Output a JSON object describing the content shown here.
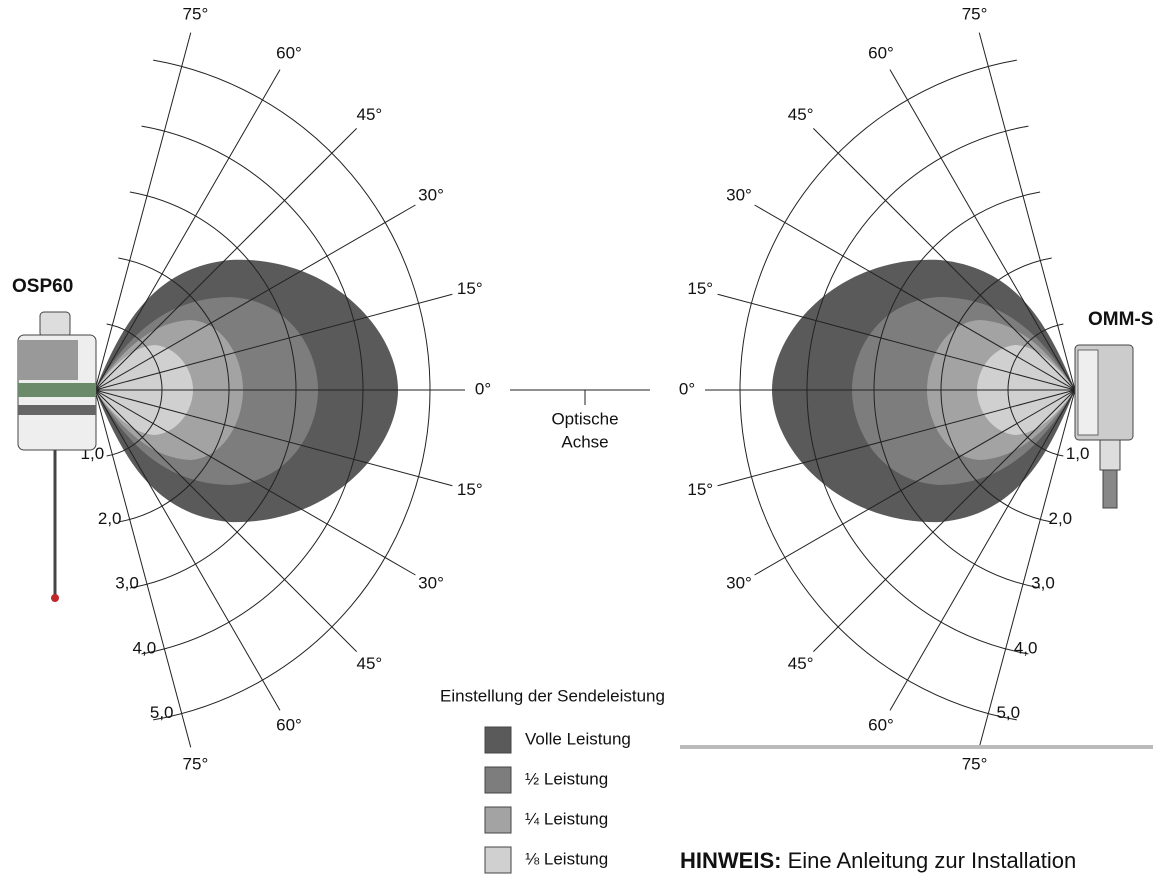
{
  "left": {
    "label": "OSP60",
    "angles_upper": [
      "75°",
      "60°",
      "45°",
      "30°",
      "15°"
    ],
    "angle_zero": "0°",
    "angles_lower": [
      "15°",
      "30°",
      "45°",
      "60°",
      "75°"
    ],
    "rings": [
      "1,0",
      "2,0",
      "3,0",
      "4,0",
      "5,0"
    ]
  },
  "right": {
    "label": "OMM-S",
    "angles_upper": [
      "75°",
      "60°",
      "45°",
      "30°",
      "15°"
    ],
    "angle_zero": "0°",
    "angles_lower": [
      "15°",
      "30°",
      "45°",
      "60°",
      "75°"
    ],
    "rings": [
      "1,0",
      "2,0",
      "3,0",
      "4,0",
      "5,0"
    ]
  },
  "axis_label": [
    "Optische",
    "Achse"
  ],
  "legend": {
    "title": "Einstellung der Sendeleistung",
    "items": [
      "Volle Leistung",
      "½ Leistung",
      "¼ Leistung",
      "⅛ Leistung"
    ]
  },
  "note": {
    "bold": "HINWEIS:",
    "text": "Eine Anleitung zur Installation"
  }
}
